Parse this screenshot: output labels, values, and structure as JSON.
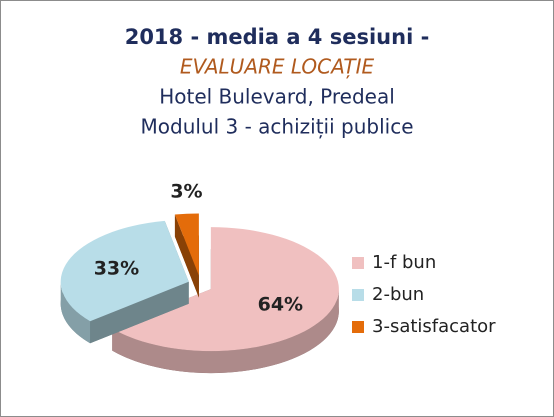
{
  "chart_data": {
    "type": "pie3d",
    "title": [
      "2018 -  media  a 4 sesiuni -",
      "EVALUARE LOCAȚIE",
      "Hotel Bulevard, Predeal",
      "Modulul 3 - achiziții publice"
    ],
    "categories": [
      "1-f bun",
      "2-bun",
      "3-satisfacator"
    ],
    "values": [
      64,
      33,
      3
    ],
    "value_labels": [
      "64%",
      "33%",
      "3%"
    ],
    "colors": [
      "#f0c0c0",
      "#b8dde8",
      "#e46c0a"
    ],
    "legend": "right"
  }
}
